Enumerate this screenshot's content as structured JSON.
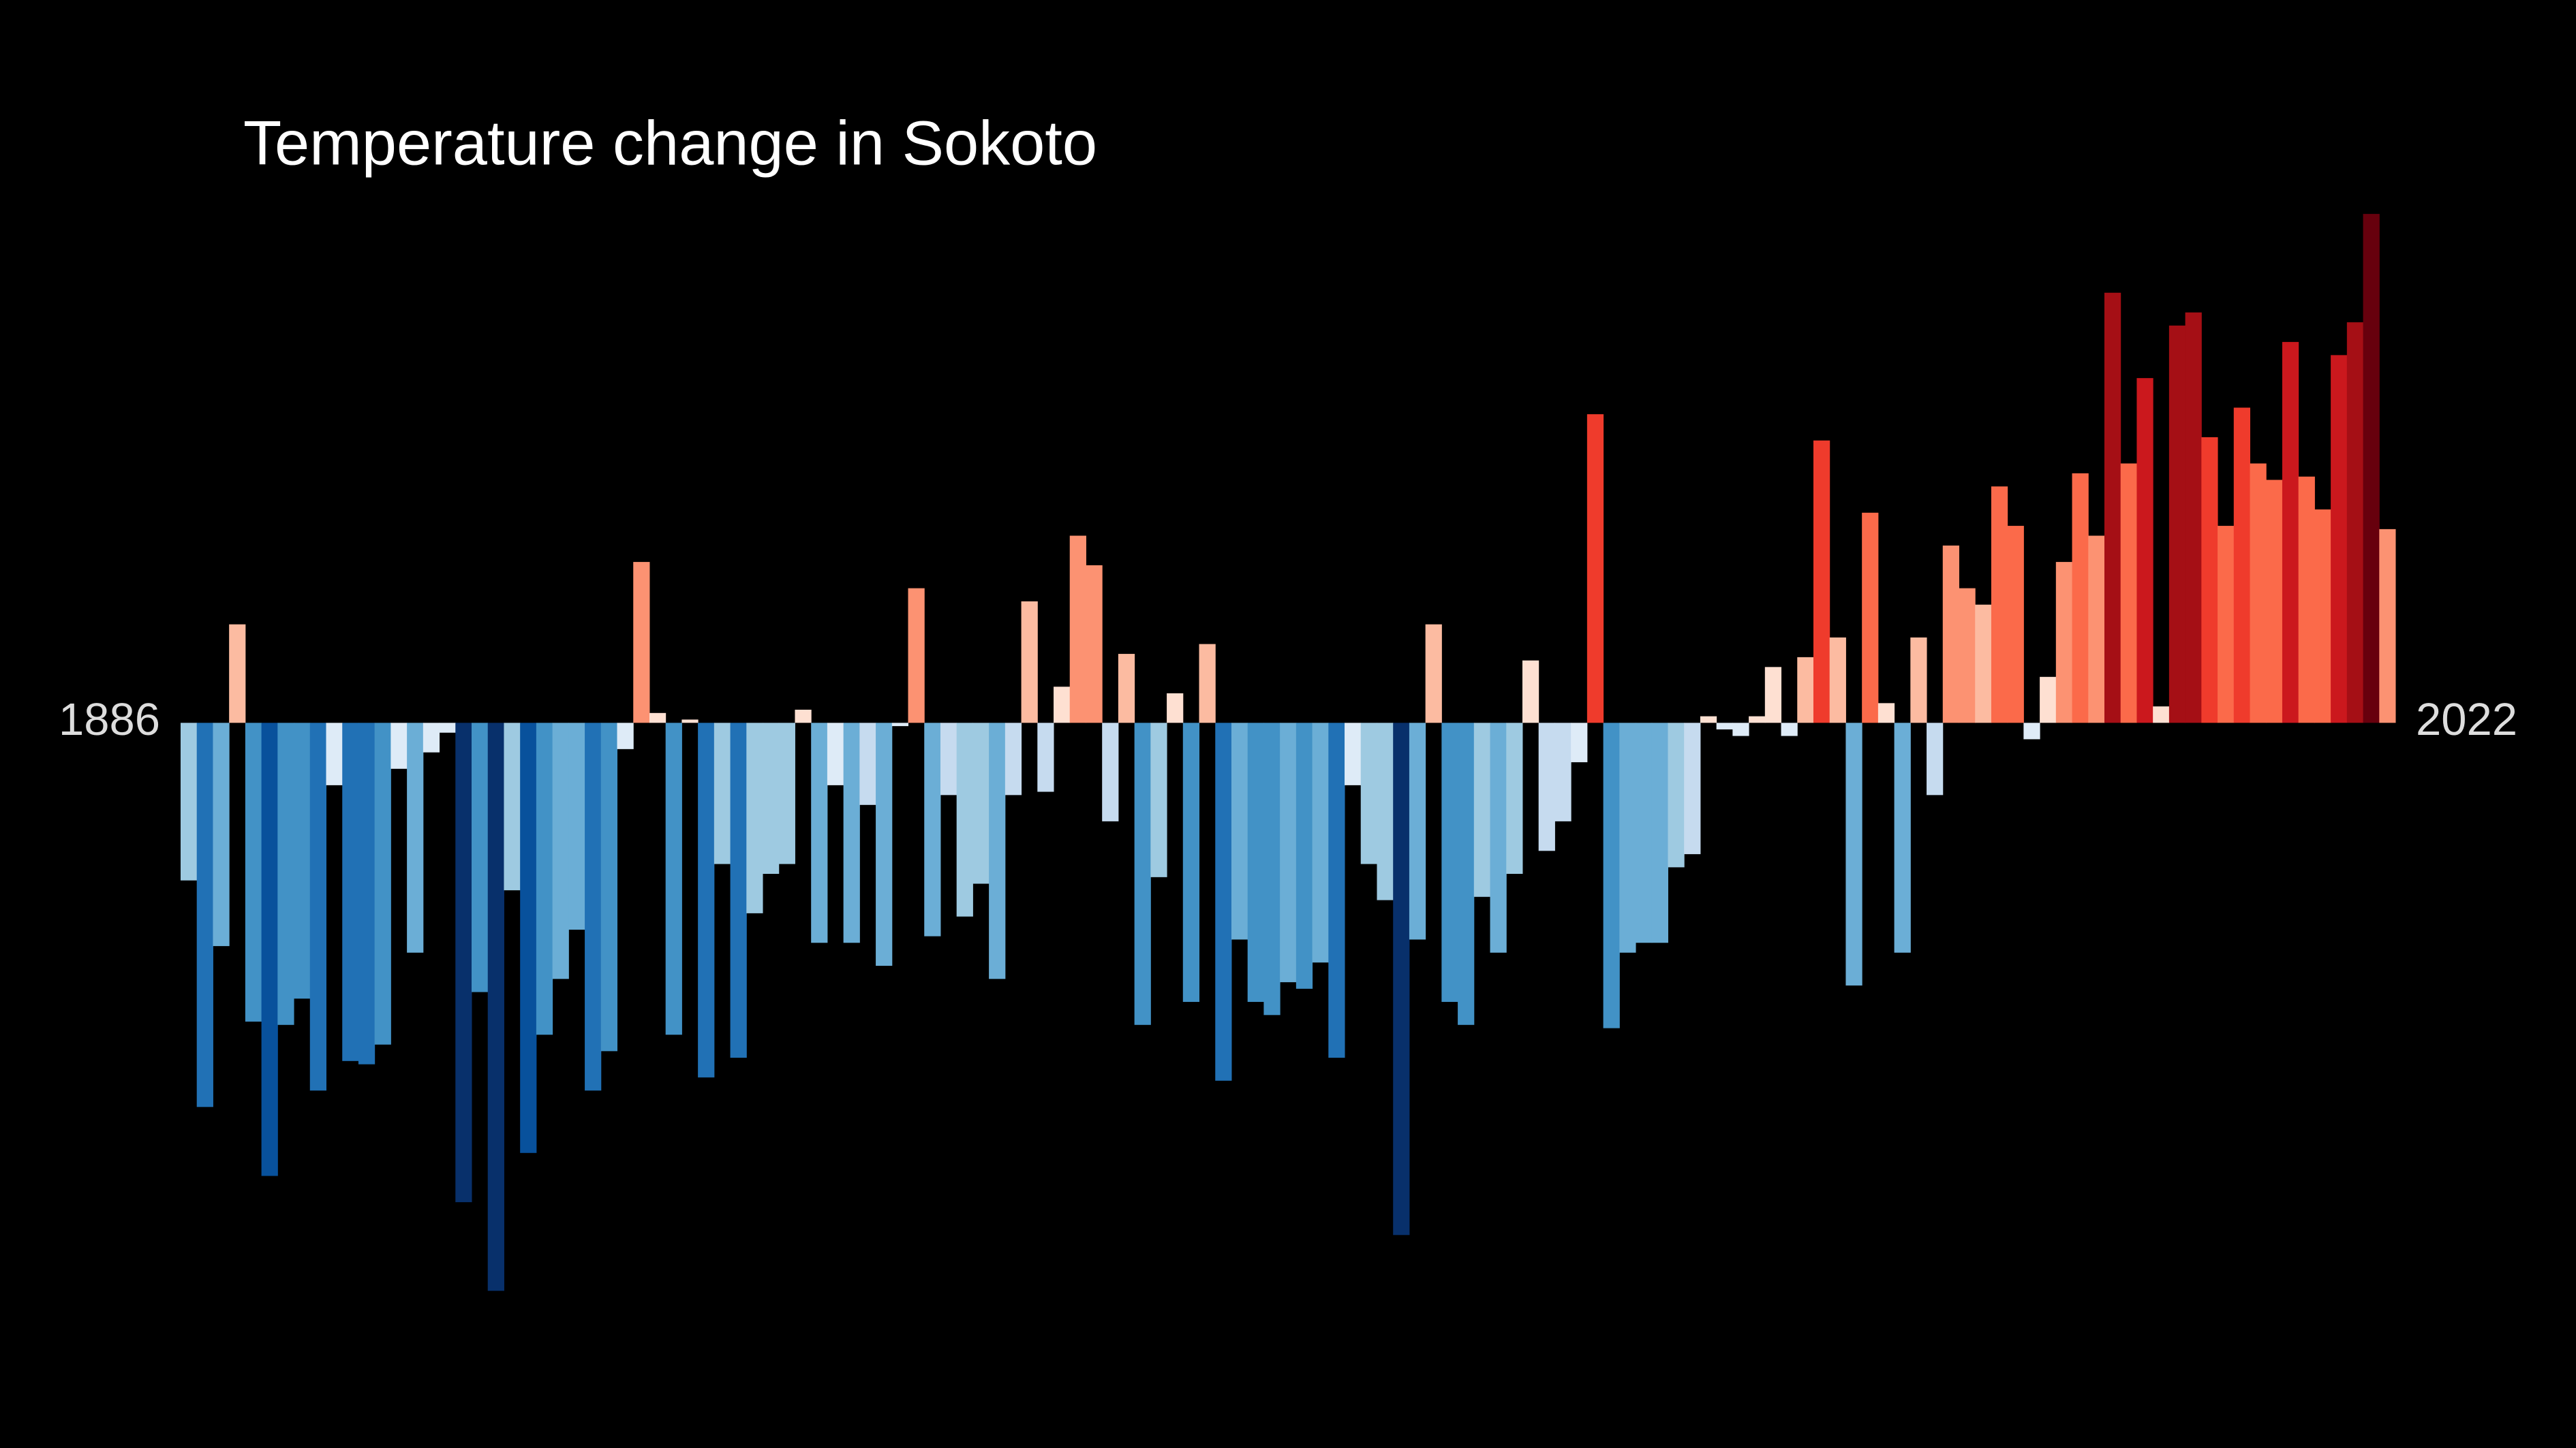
{
  "chart_data": {
    "type": "bar",
    "title": "Temperature change in Sokoto",
    "categories": [
      "1886",
      null,
      null,
      null,
      null,
      null,
      null,
      null,
      null,
      null,
      null,
      null,
      null,
      null,
      null,
      null,
      null,
      null,
      null,
      null,
      null,
      null,
      null,
      null,
      null,
      null,
      null,
      null,
      null,
      null,
      null,
      null,
      null,
      null,
      null,
      null,
      null,
      null,
      null,
      null,
      null,
      null,
      null,
      null,
      null,
      null,
      null,
      null,
      null,
      null,
      null,
      null,
      null,
      null,
      null,
      null,
      null,
      null,
      null,
      null,
      null,
      null,
      null,
      null,
      null,
      null,
      null,
      null,
      null,
      null,
      null,
      null,
      null,
      null,
      null,
      null,
      null,
      null,
      null,
      null,
      null,
      null,
      null,
      null,
      null,
      null,
      null,
      null,
      null,
      null,
      null,
      null,
      null,
      null,
      null,
      null,
      null,
      null,
      null,
      null,
      null,
      null,
      null,
      null,
      null,
      null,
      null,
      null,
      null,
      null,
      null,
      null,
      null,
      null,
      null,
      null,
      null,
      null,
      null,
      null,
      null,
      null,
      null,
      null,
      null,
      null,
      null,
      null,
      null,
      null,
      null,
      null,
      null,
      null,
      null,
      null,
      "2022"
    ],
    "values": [
      -0.48,
      -1.17,
      -0.68,
      0.3,
      -0.91,
      -1.38,
      -0.92,
      -0.84,
      -1.12,
      -0.19,
      -1.03,
      -1.04,
      -0.98,
      -0.14,
      -0.7,
      -0.09,
      -0.03,
      -1.46,
      -0.82,
      -1.73,
      -0.51,
      -1.31,
      -0.95,
      -0.78,
      -0.63,
      -1.12,
      -1.0,
      -0.08,
      0.49,
      0.03,
      -0.95,
      0.01,
      -1.08,
      -0.43,
      -1.02,
      -0.58,
      -0.46,
      -0.43,
      0.04,
      -0.67,
      -0.19,
      -0.67,
      -0.25,
      -0.74,
      -0.01,
      0.41,
      -0.65,
      -0.22,
      -0.59,
      -0.49,
      -0.78,
      -0.22,
      0.37,
      -0.21,
      0.11,
      0.57,
      0.48,
      -0.3,
      0.21,
      -0.92,
      -0.47,
      0.09,
      -0.85,
      0.24,
      -1.09,
      -0.66,
      -0.85,
      -0.89,
      -0.79,
      -0.81,
      -0.73,
      -1.02,
      -0.19,
      -0.43,
      -0.54,
      -1.56,
      -0.66,
      0.3,
      -0.85,
      -0.92,
      -0.53,
      -0.7,
      -0.46,
      0.19,
      -0.39,
      -0.3,
      -0.12,
      0.94,
      -0.93,
      -0.7,
      -0.67,
      -0.67,
      -0.44,
      -0.4,
      0.02,
      -0.02,
      -0.04,
      0.02,
      0.17,
      -0.04,
      0.2,
      0.86,
      0.26,
      -0.8,
      0.64,
      0.06,
      -0.7,
      0.26,
      -0.22,
      0.54,
      0.41,
      0.36,
      0.72,
      0.6,
      -0.05,
      0.14,
      0.49,
      0.76,
      0.57,
      1.31,
      0.79,
      1.05,
      0.05,
      1.21,
      1.25,
      0.87,
      0.6,
      0.96,
      0.79,
      0.74,
      1.16,
      0.75,
      0.65,
      1.12,
      1.22,
      1.55,
      0.59
    ],
    "ylim": [
      -1.8,
      1.6
    ],
    "colormap": [
      "#08306b",
      "#08519c",
      "#2171b5",
      "#4292c6",
      "#6baed6",
      "#9ecae1",
      "#c6dbef",
      "#deebf7",
      "#fee0d2",
      "#fcbba1",
      "#fc9272",
      "#fb6a4a",
      "#ef3b2c",
      "#cb181d",
      "#a50f15",
      "#67000d"
    ],
    "clim": [
      -1.6,
      1.6
    ]
  }
}
